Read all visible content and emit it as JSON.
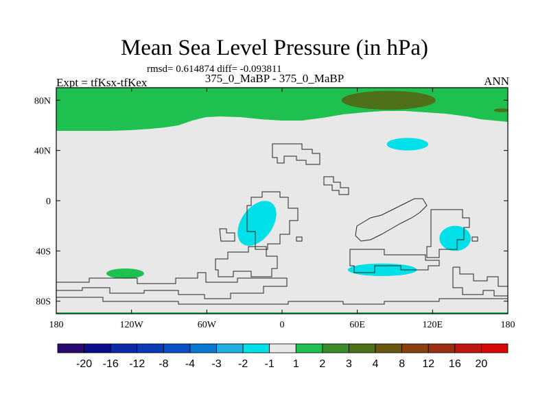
{
  "header": {
    "title": "Mean Sea Level Pressure (in hPa)",
    "stats": "rmsd= 0.614874 diff= -0.093811",
    "expt": "Expt = tfKsx-tfKex",
    "runs": "375_0_MaBP - 375_0_MaBP",
    "season": "ANN"
  },
  "chart_data": {
    "type": "heatmap",
    "title": "Mean Sea Level Pressure (in hPa)",
    "xlabel": "",
    "ylabel": "",
    "xlim": [
      -180,
      180
    ],
    "ylim": [
      -90,
      90
    ],
    "x_ticks": [
      {
        "value": -180,
        "label": "180"
      },
      {
        "value": -120,
        "label": "120W"
      },
      {
        "value": -60,
        "label": "60W"
      },
      {
        "value": 0,
        "label": "0"
      },
      {
        "value": 60,
        "label": "60E"
      },
      {
        "value": 120,
        "label": "120E"
      },
      {
        "value": 180,
        "label": "180"
      }
    ],
    "y_ticks": [
      {
        "value": 80,
        "label": "80N"
      },
      {
        "value": 40,
        "label": "40N"
      },
      {
        "value": 0,
        "label": "0"
      },
      {
        "value": -40,
        "label": "40S"
      },
      {
        "value": -80,
        "label": "80S"
      }
    ],
    "colorbar": {
      "levels": [
        "-20",
        "-16",
        "-12",
        "-8",
        "-4",
        "-3",
        "-2",
        "-1",
        "1",
        "2",
        "3",
        "4",
        "8",
        "12",
        "16",
        "20"
      ],
      "colors": [
        "#2a0a6e",
        "#0c0c8c",
        "#0a2aa8",
        "#0a3ab8",
        "#0a50c8",
        "#0878d0",
        "#20b0e0",
        "#00e0e8",
        "#e8e8e8",
        "#1ec050",
        "#3a8c28",
        "#4e7018",
        "#6a5810",
        "#884010",
        "#9a3010",
        "#c01810",
        "#d80808"
      ]
    },
    "background_value_range": [
      -1,
      1
    ],
    "regions": [
      {
        "name": "arctic-band",
        "value_range": [
          1,
          2
        ],
        "lon_range": [
          -180,
          180
        ],
        "lat_range": [
          48,
          90
        ]
      },
      {
        "name": "arctic-core",
        "value_range": [
          3,
          4
        ],
        "center": [
          85,
          80
        ],
        "lon_span": 75,
        "lat_span": 15
      },
      {
        "name": "east-arctic-fringe",
        "value_range": [
          3,
          4
        ],
        "center": [
          175,
          72
        ],
        "lon_span": 12,
        "lat_span": 3
      },
      {
        "name": "south-pacific-patch",
        "value_range": [
          1,
          2
        ],
        "center": [
          -125,
          -58
        ],
        "lon_span": 30,
        "lat_span": 8
      },
      {
        "name": "north-pacific-low",
        "value_range": [
          -2,
          -1
        ],
        "center": [
          100,
          45
        ],
        "lon_span": 33,
        "lat_span": 10
      },
      {
        "name": "south-atlantic-low",
        "value_range": [
          -2,
          -1
        ],
        "center": [
          -20,
          -18
        ],
        "lon_span": 25,
        "lat_span": 40
      },
      {
        "name": "indian-ocean-low",
        "value_range": [
          -2,
          -1
        ],
        "center": [
          138,
          -30
        ],
        "lon_span": 25,
        "lat_span": 20
      },
      {
        "name": "southern-ocean-low",
        "value_range": [
          -2,
          -1
        ],
        "center": [
          80,
          -55
        ],
        "lon_span": 55,
        "lat_span": 10
      },
      {
        "name": "south-pole-edge",
        "value_range": [
          1,
          2
        ],
        "lon_range": [
          -180,
          180
        ],
        "lat_range": [
          -90,
          -89
        ]
      }
    ]
  }
}
